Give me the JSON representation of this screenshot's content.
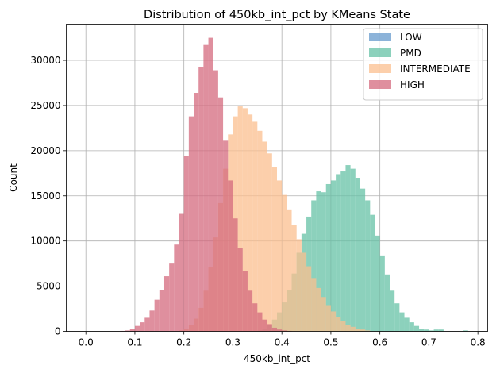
{
  "chart_data": {
    "type": "histogram",
    "title": "Distribution of 450kb_int_pct by KMeans State",
    "xlabel": "450kb_int_pct",
    "ylabel": "Count",
    "xlim": [
      -0.04,
      0.82
    ],
    "ylim": [
      0,
      34000
    ],
    "x_ticks": [
      0.0,
      0.1,
      0.2,
      0.3,
      0.4,
      0.5,
      0.6,
      0.7,
      0.8
    ],
    "x_tick_labels": [
      "0.0",
      "0.1",
      "0.2",
      "0.3",
      "0.4",
      "0.5",
      "0.6",
      "0.7",
      "0.8"
    ],
    "y_ticks": [
      0,
      5000,
      10000,
      15000,
      20000,
      25000,
      30000
    ],
    "y_tick_labels": [
      "0",
      "5000",
      "10000",
      "15000",
      "20000",
      "25000",
      "30000"
    ],
    "grid": true,
    "legend_position": "top-right",
    "bin_width": 0.01,
    "series": [
      {
        "name": "LOW",
        "color": "#6699cc",
        "bin_start": 0.0,
        "values": [
          0,
          0,
          0,
          0,
          0,
          0,
          0,
          0,
          0,
          0,
          0,
          0,
          0,
          0,
          0,
          0,
          0,
          0,
          0,
          0,
          0,
          0,
          0,
          0,
          0,
          0,
          0,
          0,
          0,
          0,
          0,
          0,
          0,
          0,
          0,
          0,
          0,
          0,
          0,
          0,
          0,
          0,
          0,
          0,
          0,
          0,
          0,
          0,
          0,
          0,
          0,
          0,
          0,
          0,
          0,
          0,
          0,
          0,
          0,
          0,
          0,
          0,
          0,
          0,
          0,
          0,
          0,
          0,
          0,
          0,
          0,
          0,
          0,
          0,
          0,
          0,
          0,
          0,
          0
        ]
      },
      {
        "name": "PMD",
        "color": "#66c2a5",
        "bin_start": 0.0,
        "values": [
          0,
          0,
          0,
          0,
          0,
          0,
          0,
          0,
          0,
          0,
          0,
          0,
          0,
          0,
          0,
          0,
          0,
          0,
          0,
          0,
          0,
          0,
          0,
          0,
          0,
          0,
          0,
          0,
          0,
          0,
          0,
          0,
          0,
          0,
          0,
          100,
          300,
          700,
          1300,
          2100,
          3200,
          4600,
          6400,
          8700,
          10800,
          12700,
          14500,
          15500,
          15400,
          16300,
          16700,
          17400,
          17700,
          18400,
          18000,
          17000,
          15800,
          14500,
          12900,
          10600,
          8400,
          6300,
          4500,
          3100,
          2100,
          1500,
          1000,
          600,
          300,
          200,
          100,
          200,
          200,
          0,
          0,
          0,
          0,
          100,
          0
        ]
      },
      {
        "name": "INTERMEDIATE",
        "color": "#fbbf8f",
        "bin_start": 0.0,
        "values": [
          0,
          0,
          0,
          0,
          0,
          0,
          0,
          0,
          0,
          0,
          0,
          0,
          0,
          0,
          0,
          0,
          0,
          0,
          0,
          100,
          300,
          700,
          1400,
          2600,
          4500,
          7100,
          10400,
          14200,
          18000,
          21800,
          23800,
          24900,
          24700,
          24000,
          23200,
          22200,
          21000,
          19700,
          18200,
          16700,
          15100,
          13500,
          11800,
          10200,
          8700,
          7200,
          5900,
          4800,
          3800,
          2900,
          2200,
          1600,
          1100,
          700,
          500,
          300,
          200,
          100,
          0,
          0,
          0,
          0,
          0,
          0,
          0,
          0,
          0,
          0,
          0,
          0,
          0,
          0,
          0,
          0,
          0,
          0,
          0,
          0,
          0
        ]
      },
      {
        "name": "HIGH",
        "color": "#d46a7e",
        "bin_start": 0.0,
        "values": [
          0,
          0,
          0,
          0,
          0,
          0,
          0,
          50,
          100,
          300,
          600,
          1000,
          1500,
          2300,
          3500,
          4600,
          6100,
          7500,
          9600,
          13000,
          19400,
          23800,
          26400,
          29300,
          31700,
          32500,
          28900,
          25900,
          21100,
          16700,
          12500,
          9200,
          6700,
          4500,
          3100,
          2100,
          1300,
          800,
          400,
          200,
          100,
          50,
          0,
          0,
          0,
          0,
          0,
          0,
          0,
          0,
          0,
          0,
          0,
          0,
          0,
          0,
          0,
          0,
          0,
          0,
          0,
          0,
          0,
          0,
          0,
          0,
          0,
          0,
          0,
          0,
          0,
          0,
          0,
          0,
          0,
          0,
          0,
          0,
          0
        ]
      }
    ]
  }
}
